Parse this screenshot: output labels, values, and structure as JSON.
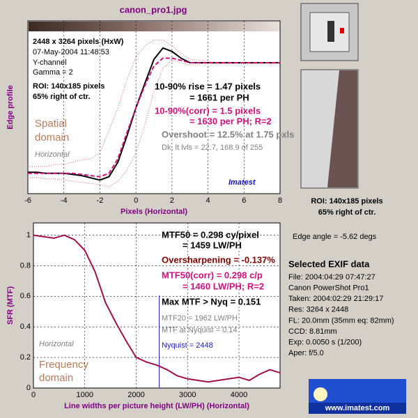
{
  "title": "canon_pro1.jpg",
  "chart_data": [
    {
      "type": "line",
      "xlabel": "Pixels (Horizontal)",
      "ylabel": "Edge profile",
      "xlim": [
        -6,
        8
      ],
      "xticks": [
        -6,
        -4,
        -2,
        0,
        2,
        4,
        6,
        8
      ],
      "ylim": [
        -0.16,
        1.37
      ],
      "grid": true,
      "x": [
        -6,
        -5.5,
        -5,
        -4.5,
        -4,
        -3.5,
        -3,
        -2.5,
        -2,
        -1.5,
        -1,
        -0.5,
        0,
        0.5,
        1,
        1.5,
        2,
        2.5,
        3,
        3.5,
        4,
        4.5,
        5,
        5.5,
        6,
        6.5,
        7,
        7.5,
        8
      ],
      "series": [
        {
          "color": "#e06060",
          "linestyle": "dotted",
          "values": [
            0.08,
            0.08,
            0.08,
            0.1,
            0.1,
            0.12,
            0.14,
            0.15,
            0.2,
            0.4,
            0.6,
            0.85,
            1.05,
            1.15,
            1.2,
            1.2,
            1.15,
            1.08,
            1.03,
            1.02,
            1.01,
            1.0,
            1.0,
            1.0,
            1.0,
            1.0,
            1.0,
            1.0,
            1.0
          ]
        },
        {
          "color": "#e06060",
          "linestyle": "dotted",
          "values": [
            -0.02,
            -0.02,
            -0.03,
            -0.03,
            -0.04,
            -0.05,
            -0.06,
            -0.07,
            -0.08,
            -0.1,
            -0.05,
            0.05,
            0.2,
            0.45,
            0.75,
            0.95,
            1.02,
            1.0,
            0.98,
            0.99,
            0.99,
            0.99,
            0.99,
            0.99,
            0.99,
            0.99,
            0.99,
            0.99,
            0.99
          ]
        },
        {
          "color": "#000000",
          "linestyle": "solid",
          "values": [
            0.03,
            0.03,
            0.02,
            0.02,
            0.02,
            0.01,
            0.0,
            -0.02,
            -0.04,
            -0.01,
            0.12,
            0.35,
            0.6,
            0.82,
            1.03,
            1.13,
            1.1,
            1.04,
            1.0,
            1.0,
            1.0,
            1.0,
            1.0,
            1.0,
            1.0,
            1.0,
            1.0,
            1.0,
            1.0
          ]
        },
        {
          "color": "#d0107a",
          "linestyle": "dashed",
          "values": [
            0.02,
            0.02,
            0.02,
            0.02,
            0.02,
            0.02,
            0.01,
            0.0,
            -0.01,
            0.02,
            0.15,
            0.38,
            0.6,
            0.8,
            0.97,
            1.04,
            1.04,
            1.02,
            1.0,
            1.0,
            1.0,
            1.0,
            1.0,
            1.0,
            1.0,
            1.0,
            1.0,
            1.0,
            1.0
          ]
        }
      ],
      "annotations": {
        "size": "2448 x 3264 pixels (HxW)",
        "date": "07-May-2004 11:48:53",
        "channel": "Y-channel",
        "gamma": "Gamma = 2",
        "roi": "ROI: 140x185 pixels",
        "pos": "65% right of ctr.",
        "rise": "10-90% rise = 1.47 pixels",
        "rise_ph": "= 1661 per PH",
        "rise_corr": "10-90%(corr) = 1.5 pixels",
        "rise_corr_ph": "= 1630 per PH;  R=2",
        "overshoot": "Overshoot = 12.5% at 1.75 pxls",
        "levels": "Dk, lt lvls = 22.7, 168.9 of 255",
        "domain1": "Spatial",
        "domain2": "domain",
        "direction": "Horizontal",
        "brand": "Imatest"
      }
    },
    {
      "type": "line",
      "xlabel": "Line widths per picture height (LW/PH) (Horizontal)",
      "ylabel": "SFR (MTF)",
      "xlim": [
        0,
        4800
      ],
      "xticks": [
        0,
        1000,
        2000,
        3000,
        4000
      ],
      "ylim": [
        0,
        1.08
      ],
      "yticks": [
        0,
        0.2,
        0.4,
        0.6,
        0.8,
        1
      ],
      "grid": true,
      "nyquist": 2448,
      "x": [
        0,
        200,
        400,
        600,
        800,
        1000,
        1200,
        1400,
        1600,
        1800,
        2000,
        2200,
        2400,
        2600,
        2800,
        3000,
        3200,
        3400,
        3600,
        3800,
        4000,
        4200,
        4400,
        4600,
        4800
      ],
      "series": [
        {
          "color": "#a0104a",
          "linestyle": "solid",
          "values": [
            1.0,
            0.99,
            0.98,
            1.0,
            0.97,
            0.9,
            0.76,
            0.56,
            0.43,
            0.31,
            0.2,
            0.17,
            0.15,
            0.12,
            0.08,
            0.06,
            0.05,
            0.04,
            0.05,
            0.06,
            0.07,
            0.05,
            0.09,
            0.12,
            0.1
          ]
        }
      ],
      "annotations": {
        "mtf50": "MTF50 = 0.298 cy/pixel",
        "mtf50_ph": "= 1459 LW/PH",
        "oversharp": "Oversharpening = -0.137%",
        "mtf50c": "MTF50(corr) = 0.298 c/p",
        "mtf50c_ph": "= 1460 LW/PH;  R=2",
        "maxnyq": "Max MTF > Nyq = 0.151",
        "mtf20": "MTF20 = 1962 LW/PH",
        "mtfnyq": "MTF at Nyquist = 0.14",
        "nyq": "Nyquist = 2448",
        "direction": "Horizontal",
        "domain1": "Frequency",
        "domain2": "domain"
      }
    }
  ],
  "side": {
    "roi": "ROI: 140x185 pixels",
    "pos": "65% right of ctr.",
    "edge": "Edge angle = -5.62 degs",
    "exif_title": "Selected EXIF data",
    "exif": [
      "File:  2004:04:29 07:47:27",
      "Canon PowerShot Pro1",
      "Taken:  2004:02:29 21:29:17",
      "Res:   3264 x 2448",
      "FL:  20.0mm  (35mm eq: 82mm)",
      "CCD:   8.81mm",
      "Exp:   0.0050 s  (1/200)",
      "Aper:  f/5.0"
    ],
    "logo": "www.imatest.com"
  }
}
